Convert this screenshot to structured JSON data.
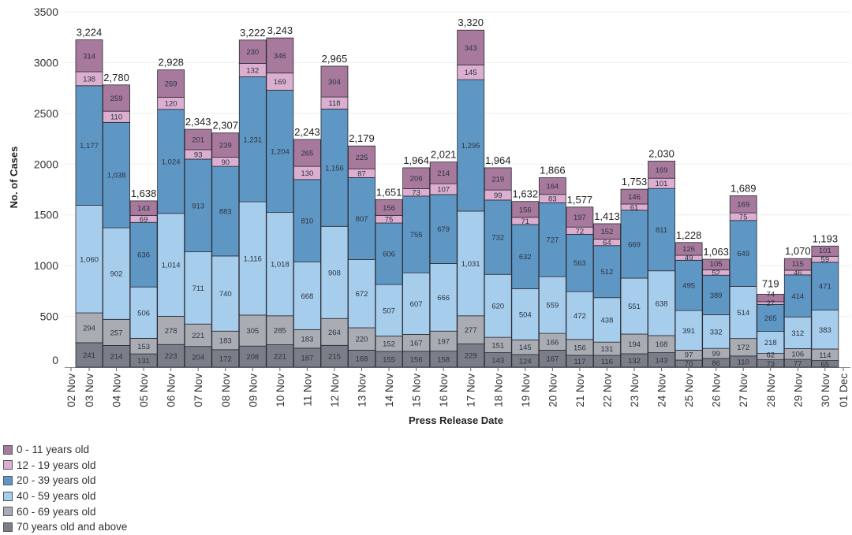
{
  "chart_data": {
    "type": "bar",
    "stacked": true,
    "title": "",
    "xlabel": "Press Release Date",
    "ylabel": "No. of Cases",
    "ylim": [
      0,
      3500
    ],
    "yticks": [
      0,
      500,
      1000,
      1500,
      2000,
      2500,
      3000,
      3500
    ],
    "ytick_labels": [
      "0",
      "500",
      "1000",
      "1500",
      "2000",
      "2500",
      "3000",
      "3500"
    ],
    "grid": true,
    "legend_position": "bottom-left",
    "xtick_labels": [
      "02 Nov",
      "03 Nov",
      "04 Nov",
      "05 Nov",
      "06 Nov",
      "07 Nov",
      "08 Nov",
      "09 Nov",
      "10 Nov",
      "11 Nov",
      "12 Nov",
      "13 Nov",
      "14 Nov",
      "15 Nov",
      "16 Nov",
      "17 Nov",
      "18 Nov",
      "19 Nov",
      "20 Nov",
      "21 Nov",
      "22 Nov",
      "23 Nov",
      "24 Nov",
      "25 Nov",
      "26 Nov",
      "27 Nov",
      "28 Nov",
      "29 Nov",
      "30 Nov",
      "01 Dec"
    ],
    "categories": [
      "03 Nov",
      "04 Nov",
      "05 Nov",
      "06 Nov",
      "07 Nov",
      "08 Nov",
      "09 Nov",
      "10 Nov",
      "11 Nov",
      "12 Nov",
      "13 Nov",
      "14 Nov",
      "15 Nov",
      "16 Nov",
      "17 Nov",
      "18 Nov",
      "19 Nov",
      "20 Nov",
      "21 Nov",
      "22 Nov",
      "23 Nov",
      "24 Nov",
      "25 Nov",
      "26 Nov",
      "27 Nov",
      "28 Nov",
      "29 Nov",
      "30 Nov"
    ],
    "totals": [
      "3,224",
      "2,780",
      "1,638",
      "2,928",
      "2,343",
      "2,307",
      "3,222",
      "3,243",
      "2,243",
      "2,965",
      "2,179",
      "1,651",
      "1,964",
      "2,021",
      "3,320",
      "1,964",
      "1,632",
      "1,866",
      "1,577",
      "1,413",
      "1,753",
      "2,030",
      "1,228",
      "1,063",
      "1,689",
      "719",
      "1,070",
      "1,193"
    ],
    "series": [
      {
        "name": "70 years old and above",
        "color": "#7a7e88",
        "values": [
          241,
          214,
          131,
          223,
          204,
          172,
          208,
          221,
          187,
          215,
          168,
          155,
          156,
          158,
          229,
          143,
          124,
          167,
          117,
          116,
          132,
          143,
          70,
          86,
          110,
          73,
          77,
          65
        ]
      },
      {
        "name": "60 - 69 years old",
        "color": "#a9acb3",
        "values": [
          294,
          257,
          153,
          278,
          221,
          183,
          305,
          285,
          183,
          264,
          220,
          152,
          167,
          197,
          277,
          151,
          145,
          166,
          156,
          131,
          194,
          168,
          97,
          99,
          172,
          62,
          106,
          114
        ]
      },
      {
        "name": "40 - 59 years old",
        "color": "#a6cdec",
        "values": [
          1060,
          902,
          506,
          1014,
          711,
          740,
          1116,
          1018,
          668,
          908,
          672,
          507,
          607,
          666,
          1031,
          620,
          504,
          559,
          472,
          438,
          551,
          638,
          391,
          332,
          514,
          218,
          312,
          383
        ]
      },
      {
        "name": "20 - 39 years old",
        "color": "#5f97c4",
        "values": [
          1177,
          1038,
          636,
          1024,
          913,
          883,
          1231,
          1204,
          810,
          1156,
          807,
          606,
          755,
          679,
          1295,
          732,
          632,
          727,
          563,
          512,
          669,
          811,
          495,
          389,
          649,
          265,
          414,
          471
        ]
      },
      {
        "name": "12 - 19 years old",
        "color": "#dcaed0",
        "values": [
          138,
          110,
          69,
          120,
          93,
          90,
          132,
          169,
          130,
          118,
          87,
          75,
          73,
          107,
          145,
          99,
          71,
          83,
          72,
          64,
          61,
          101,
          49,
          52,
          75,
          27,
          46,
          59
        ]
      },
      {
        "name": "0 - 11 years old",
        "color": "#a7799c",
        "values": [
          314,
          259,
          143,
          269,
          201,
          239,
          230,
          346,
          265,
          304,
          225,
          156,
          206,
          214,
          343,
          219,
          156,
          164,
          197,
          152,
          146,
          169,
          126,
          105,
          169,
          74,
          115,
          101
        ]
      }
    ],
    "legend_order": [
      "0 - 11 years old",
      "12 - 19 years old",
      "20 - 39 years old",
      "40 - 59 years old",
      "60 - 69 years old",
      "70 years old and above"
    ]
  }
}
